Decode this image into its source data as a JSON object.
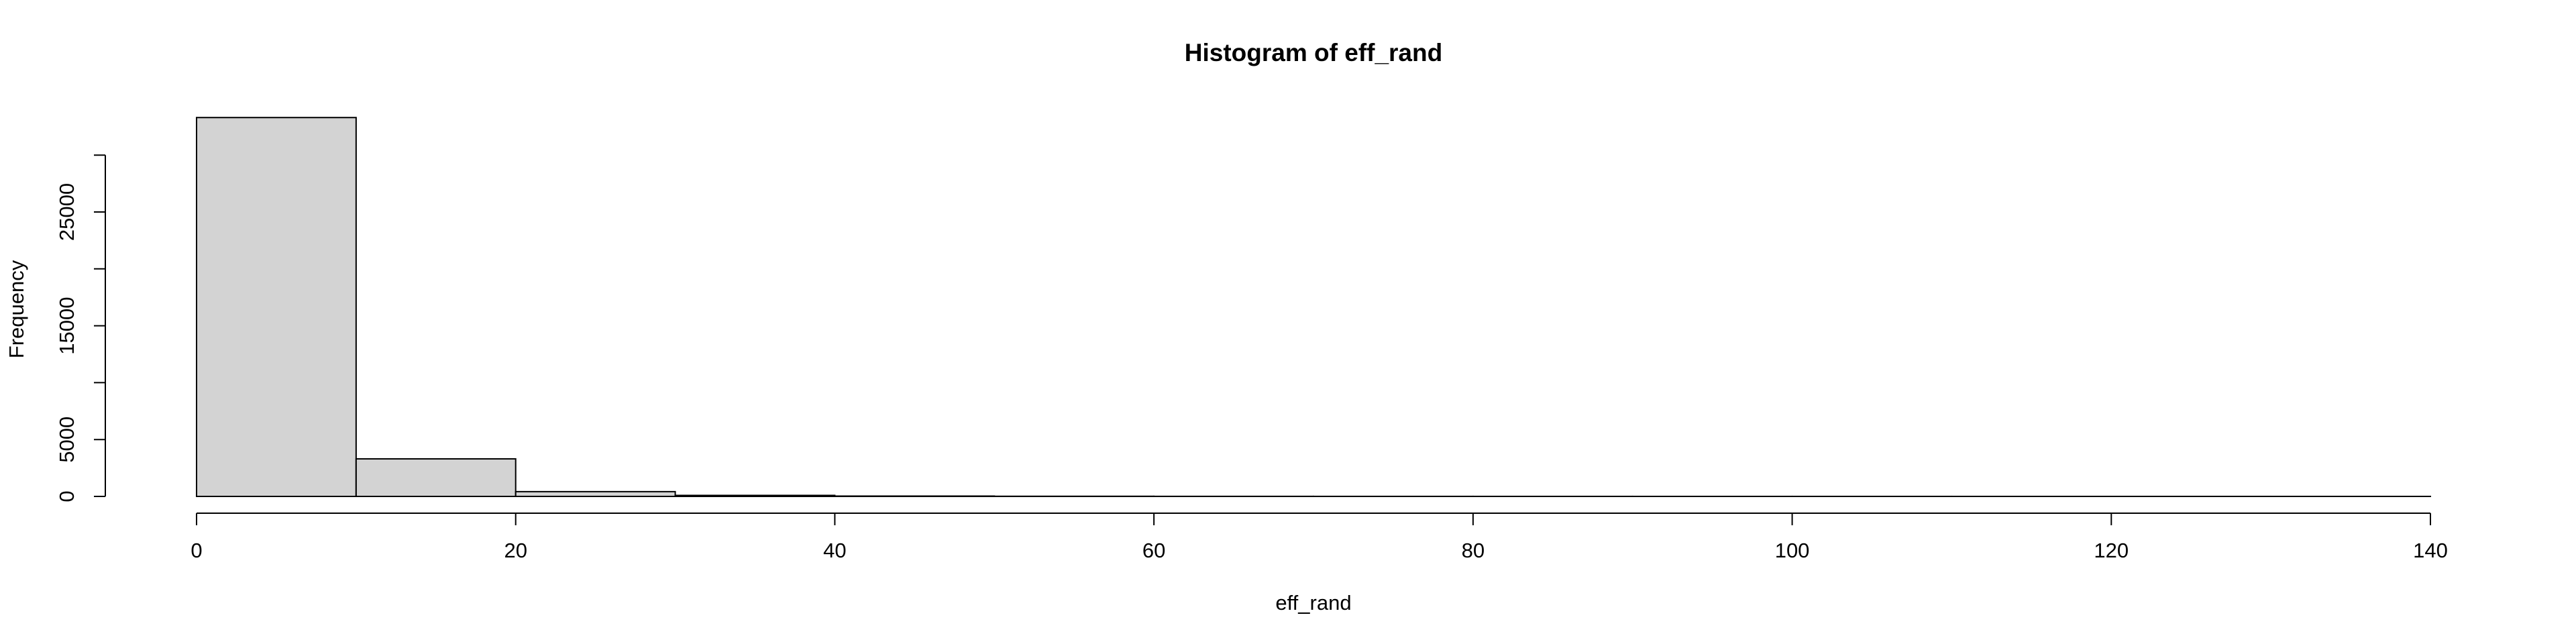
{
  "chart_data": {
    "type": "bar",
    "subtype": "histogram",
    "title": "Histogram of eff_rand",
    "xlabel": "eff_rand",
    "ylabel": "Frequency",
    "bin_edges": [
      0,
      10,
      20,
      30,
      40,
      50,
      60,
      70,
      80,
      90,
      100,
      110,
      120,
      130,
      140
    ],
    "values": [
      33300,
      3300,
      420,
      90,
      30,
      12,
      6,
      4,
      3,
      2,
      2,
      1,
      1,
      1
    ],
    "xlim": [
      0,
      140
    ],
    "ylim": [
      0,
      30000
    ],
    "x_ticks": [
      0,
      20,
      40,
      60,
      80,
      100,
      120,
      140
    ],
    "y_ticks": [
      0,
      5000,
      10000,
      15000,
      20000,
      25000,
      30000
    ],
    "y_tick_labels": [
      "0",
      "5000",
      "",
      "15000",
      "",
      "25000",
      ""
    ],
    "bar_fill": "#d3d3d3",
    "bar_stroke": "#000000",
    "grid": false,
    "legend": "none"
  }
}
